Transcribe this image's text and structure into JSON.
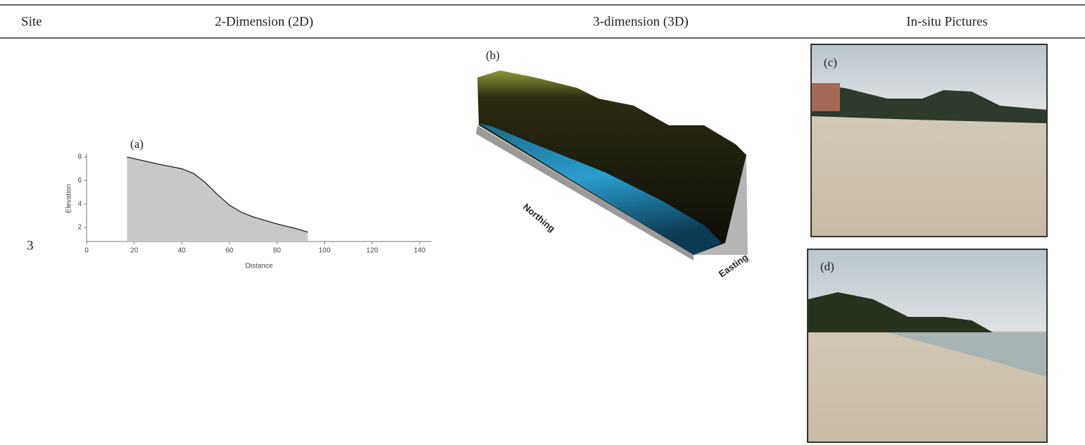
{
  "header": {
    "columns": [
      "Site",
      "2-Dimension (2D)",
      "3-dimension (3D)",
      "In-situ Pictures"
    ]
  },
  "rows": [
    {
      "site": "3",
      "figure_2d": {
        "type": "area",
        "label": "(a)",
        "x_label": "Distance",
        "y_label": "Elevation",
        "x": [
          17,
          30,
          40,
          45,
          50,
          55,
          60,
          65,
          70,
          80,
          88,
          93
        ],
        "values": [
          8.0,
          7.4,
          7.0,
          6.6,
          5.8,
          4.8,
          3.9,
          3.3,
          2.9,
          2.3,
          1.9,
          1.6
        ],
        "xlim": [
          0,
          145
        ],
        "xticks": [
          0,
          20,
          40,
          60,
          80,
          100,
          120,
          140
        ],
        "ylim": [
          0.8,
          8.3
        ],
        "yticks": [
          2,
          4,
          6,
          8
        ],
        "color": "#c8c8c8"
      },
      "figure_3d": {
        "label": "(b)",
        "y_label": "Northing",
        "x_label": "Easting"
      },
      "pictures": [
        "(c)",
        "(d)"
      ]
    }
  ]
}
